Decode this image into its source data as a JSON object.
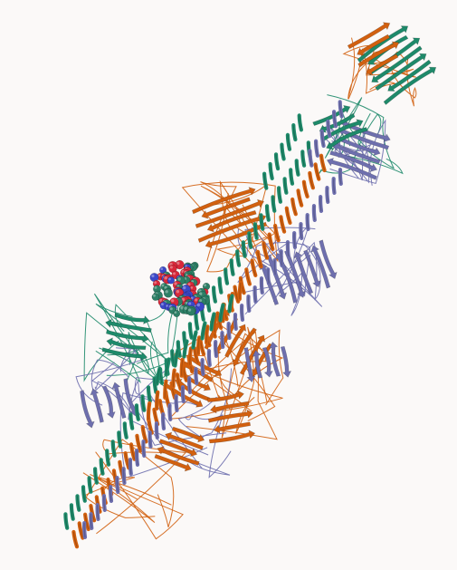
{
  "viewer": {
    "background": "#fbf9f8",
    "colors": {
      "chain_a": "#d2600f",
      "chain_b": "#6e6fae",
      "chain_c": "#1e8a6a",
      "ligand_carbon": "#2d7f66",
      "ligand_oxygen": "#d8283a",
      "ligand_nitrogen": "#3b48c8"
    },
    "chains": [
      {
        "name": "chain-orange",
        "color_key": "chain_a"
      },
      {
        "name": "chain-purple",
        "color_key": "chain_b"
      },
      {
        "name": "chain-green",
        "color_key": "chain_c"
      }
    ],
    "ligand_present": true
  }
}
